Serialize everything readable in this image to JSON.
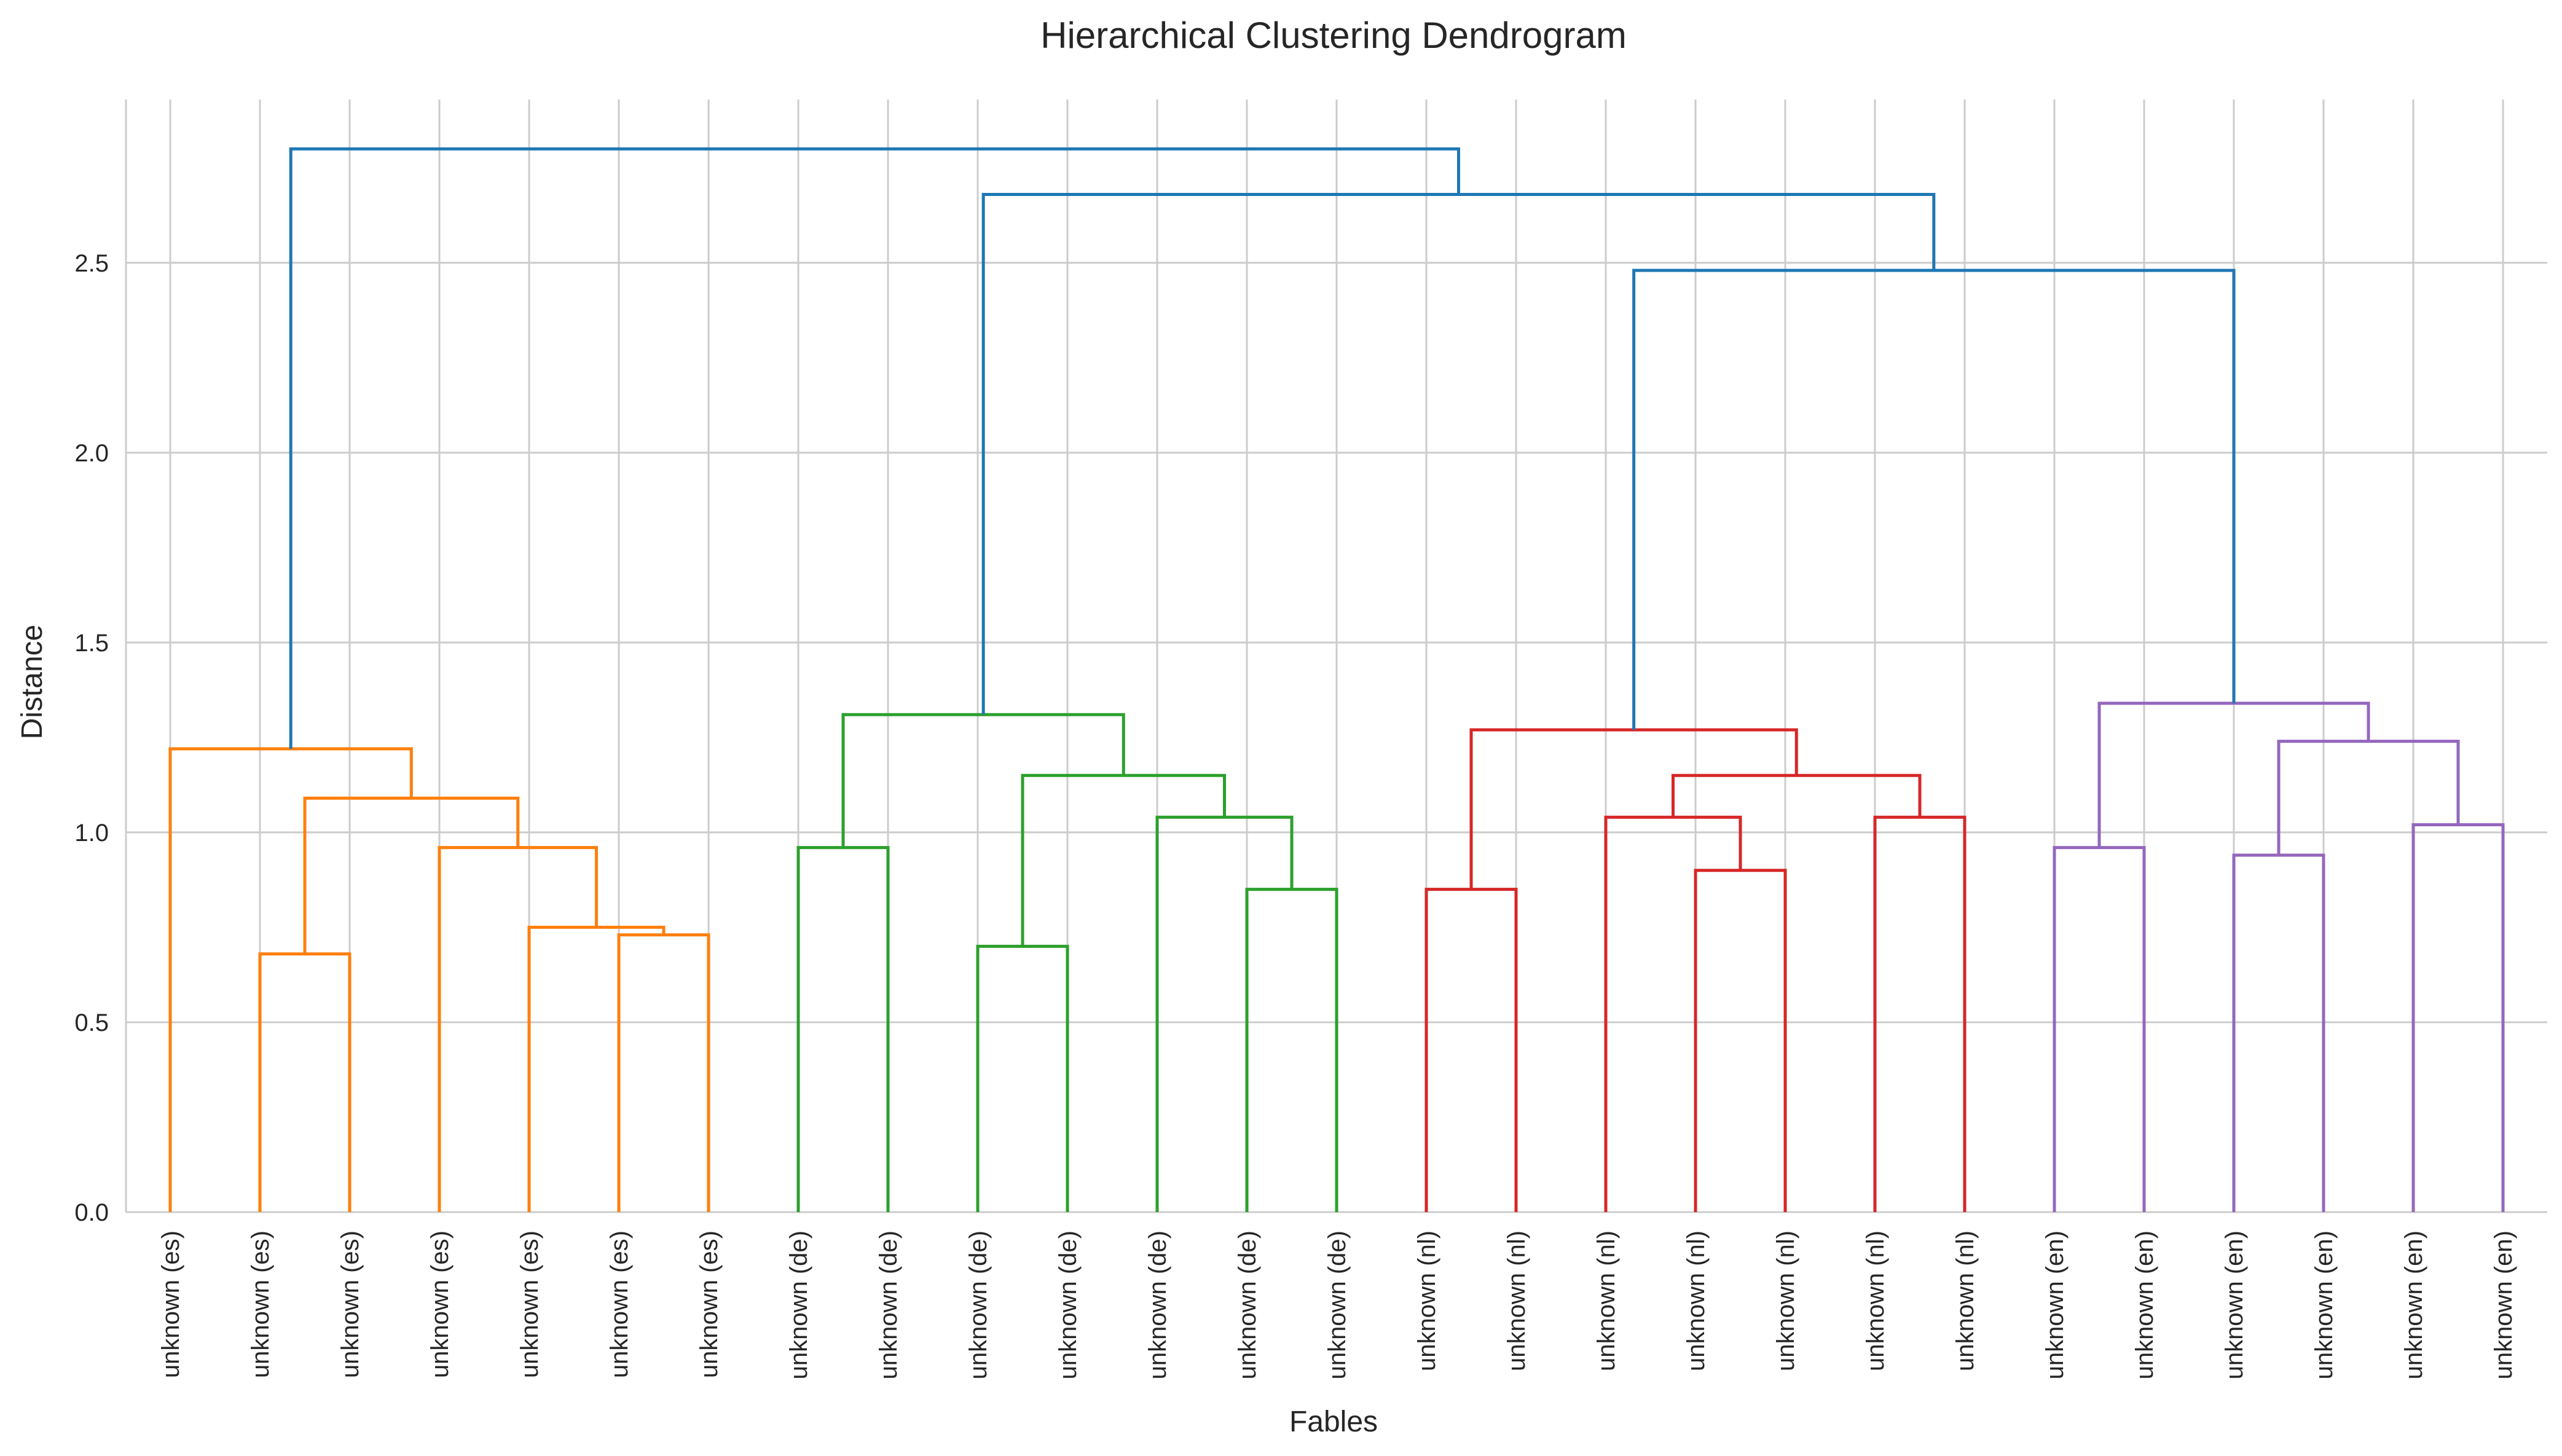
{
  "chart_data": {
    "type": "dendrogram",
    "title": "Hierarchical Clustering Dendrogram",
    "xlabel": "Fables",
    "ylabel": "Distance",
    "ylim": [
      0,
      2.93
    ],
    "yticks": [
      0.0,
      0.5,
      1.0,
      1.5,
      2.0,
      2.5
    ],
    "ytick_labels": [
      "0.0",
      "0.5",
      "1.0",
      "1.5",
      "2.0",
      "2.5"
    ],
    "grid": true,
    "colors": {
      "above_threshold": "#1f77b4",
      "es": "#ff7f0e",
      "de": "#2ca02c",
      "nl": "#d62728",
      "en": "#9467bd"
    },
    "leaves": [
      "unknown (es)",
      "unknown (es)",
      "unknown (es)",
      "unknown (es)",
      "unknown (es)",
      "unknown (es)",
      "unknown (es)",
      "unknown (de)",
      "unknown (de)",
      "unknown (de)",
      "unknown (de)",
      "unknown (de)",
      "unknown (de)",
      "unknown (de)",
      "unknown (nl)",
      "unknown (nl)",
      "unknown (nl)",
      "unknown (nl)",
      "unknown (nl)",
      "unknown (nl)",
      "unknown (nl)",
      "unknown (en)",
      "unknown (en)",
      "unknown (en)",
      "unknown (en)",
      "unknown (en)",
      "unknown (en)"
    ],
    "merges": [
      {
        "left": {
          "leaf": 5
        },
        "right": {
          "leaf": 6
        },
        "height": 0.73,
        "color": "es"
      },
      {
        "left": {
          "leaf": 4
        },
        "right": {
          "node": 0
        },
        "height": 0.75,
        "color": "es"
      },
      {
        "left": {
          "leaf": 3
        },
        "right": {
          "node": 1
        },
        "height": 0.96,
        "color": "es"
      },
      {
        "left": {
          "leaf": 1
        },
        "right": {
          "leaf": 2
        },
        "height": 0.68,
        "color": "es"
      },
      {
        "left": {
          "node": 3
        },
        "right": {
          "node": 2
        },
        "height": 1.09,
        "color": "es"
      },
      {
        "left": {
          "leaf": 0
        },
        "right": {
          "node": 4
        },
        "height": 1.22,
        "color": "es"
      },
      {
        "left": {
          "leaf": 7
        },
        "right": {
          "leaf": 8
        },
        "height": 0.96,
        "color": "de"
      },
      {
        "left": {
          "leaf": 9
        },
        "right": {
          "leaf": 10
        },
        "height": 0.7,
        "color": "de"
      },
      {
        "left": {
          "leaf": 12
        },
        "right": {
          "leaf": 13
        },
        "height": 0.85,
        "color": "de"
      },
      {
        "left": {
          "leaf": 11
        },
        "right": {
          "node": 8
        },
        "height": 1.04,
        "color": "de"
      },
      {
        "left": {
          "node": 7
        },
        "right": {
          "node": 9
        },
        "height": 1.15,
        "color": "de"
      },
      {
        "left": {
          "node": 6
        },
        "right": {
          "node": 10
        },
        "height": 1.31,
        "color": "de"
      },
      {
        "left": {
          "leaf": 14
        },
        "right": {
          "leaf": 15
        },
        "height": 0.85,
        "color": "nl"
      },
      {
        "left": {
          "leaf": 17
        },
        "right": {
          "leaf": 18
        },
        "height": 0.9,
        "color": "nl"
      },
      {
        "left": {
          "leaf": 16
        },
        "right": {
          "node": 13
        },
        "height": 1.04,
        "color": "nl"
      },
      {
        "left": {
          "leaf": 19
        },
        "right": {
          "leaf": 20
        },
        "height": 1.04,
        "color": "nl"
      },
      {
        "left": {
          "node": 14
        },
        "right": {
          "node": 15
        },
        "height": 1.15,
        "color": "nl"
      },
      {
        "left": {
          "node": 12
        },
        "right": {
          "node": 16
        },
        "height": 1.27,
        "color": "nl"
      },
      {
        "left": {
          "leaf": 21
        },
        "right": {
          "leaf": 22
        },
        "height": 0.96,
        "color": "en"
      },
      {
        "left": {
          "leaf": 23
        },
        "right": {
          "leaf": 24
        },
        "height": 0.94,
        "color": "en"
      },
      {
        "left": {
          "leaf": 25
        },
        "right": {
          "leaf": 26
        },
        "height": 1.02,
        "color": "en"
      },
      {
        "left": {
          "node": 19
        },
        "right": {
          "node": 20
        },
        "height": 1.24,
        "color": "en"
      },
      {
        "left": {
          "node": 18
        },
        "right": {
          "node": 21
        },
        "height": 1.34,
        "color": "en"
      },
      {
        "left": {
          "node": 17
        },
        "right": {
          "node": 22
        },
        "height": 2.48,
        "color": "above_threshold"
      },
      {
        "left": {
          "node": 11
        },
        "right": {
          "node": 23
        },
        "height": 2.68,
        "color": "above_threshold"
      },
      {
        "left": {
          "node": 5
        },
        "right": {
          "node": 24
        },
        "height": 2.8,
        "color": "above_threshold"
      }
    ]
  }
}
